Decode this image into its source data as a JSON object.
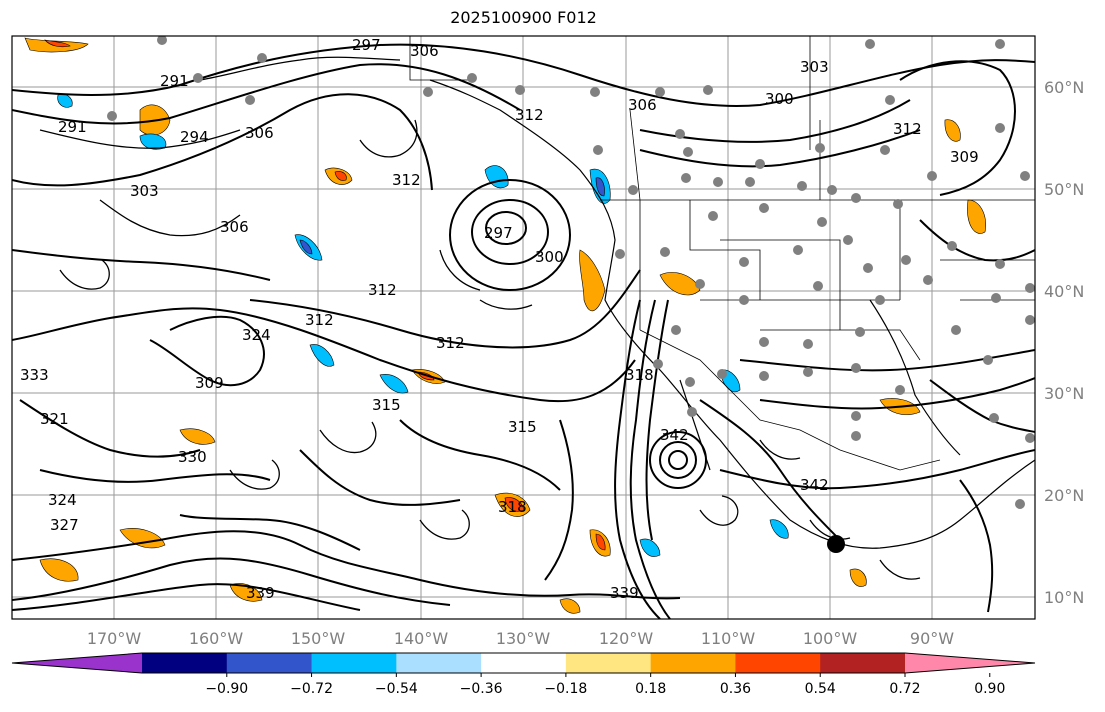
{
  "title": "2025100900 F012",
  "map": {
    "lon_ticks": [
      "170°W",
      "160°W",
      "150°W",
      "140°W",
      "130°W",
      "120°W",
      "110°W",
      "100°W",
      "90°W"
    ],
    "lat_ticks": [
      "60°N",
      "50°N",
      "40°N",
      "30°N",
      "20°N",
      "10°N"
    ],
    "contour_labels": [
      "291",
      "294",
      "297",
      "297",
      "300",
      "300",
      "303",
      "303",
      "306",
      "306",
      "306",
      "309",
      "309",
      "312",
      "312",
      "312",
      "312",
      "312",
      "315",
      "315",
      "318",
      "318",
      "321",
      "324",
      "324",
      "327",
      "330",
      "333",
      "339",
      "339",
      "342",
      "342"
    ]
  },
  "colorbar": {
    "tick_labels": [
      "−0.90",
      "−0.72",
      "−0.54",
      "−0.36",
      "−0.18",
      "0.18",
      "0.36",
      "0.54",
      "0.72",
      "0.90"
    ],
    "colors": [
      "#9933cc",
      "#000080",
      "#3355cc",
      "#00bfff",
      "#aadfff",
      "#ffffff",
      "#ffe680",
      "#ffa500",
      "#ff4500",
      "#b22222",
      "#ff88aa"
    ]
  }
}
